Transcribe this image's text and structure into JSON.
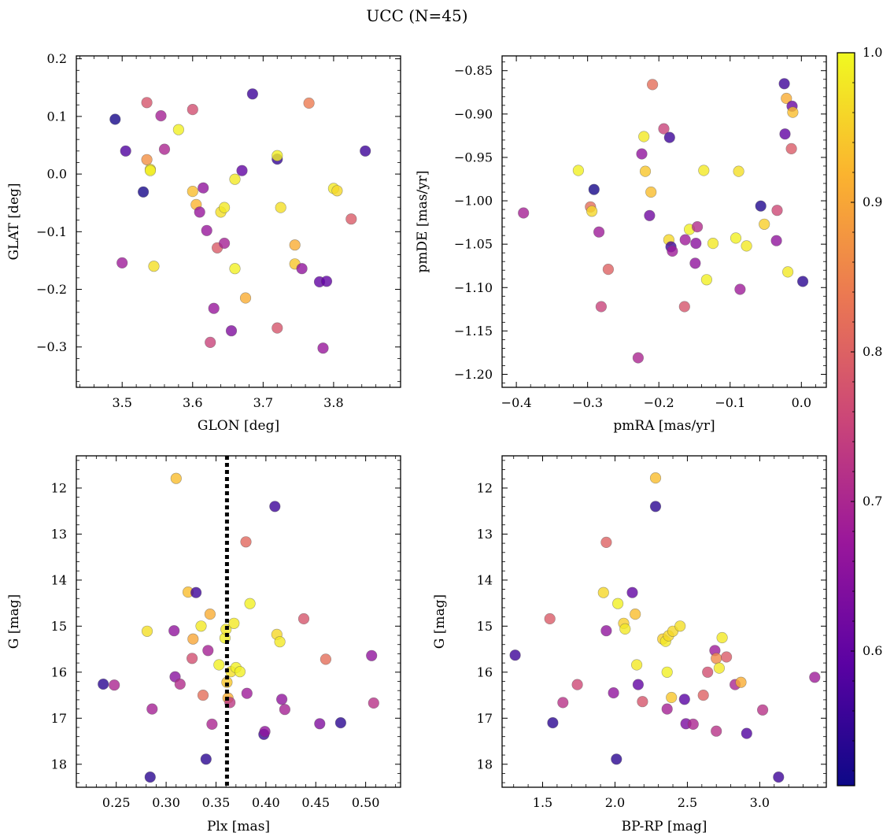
{
  "figure": {
    "title": "UCC (N=45)",
    "colormap": [
      "#0d0887",
      "#5b02a3",
      "#9a179b",
      "#cb4678",
      "#eb7852",
      "#fbb32f",
      "#f0f921"
    ],
    "marker_alpha": 0.8,
    "colorbar": {
      "range": [
        0.51,
        1.0
      ],
      "ticks": [
        "0.6",
        "0.7",
        "0.8",
        "0.9",
        "1.0"
      ],
      "tick_values": [
        0.6,
        0.7,
        0.8,
        0.9,
        1.0
      ]
    }
  },
  "chart_data": [
    {
      "type": "scatter",
      "xlabel": "GLON [deg]",
      "ylabel": "GLAT [deg]",
      "xlim": [
        3.435,
        3.895
      ],
      "ylim": [
        -0.37,
        0.205
      ],
      "yinvert": false,
      "xticks": [
        3.5,
        3.6,
        3.7,
        3.8
      ],
      "xticklabels": [
        "3.5",
        "3.6",
        "3.7",
        "3.8"
      ],
      "yticks": [
        0.2,
        0.1,
        0.0,
        -0.1,
        -0.2,
        -0.3
      ],
      "yticklabels": [
        "0.2",
        "0.1",
        "0.0",
        "−0.1",
        "−0.2",
        "−0.3"
      ],
      "x": [
        3.49,
        3.5,
        3.505,
        3.53,
        3.535,
        3.535,
        3.54,
        3.54,
        3.545,
        3.555,
        3.56,
        3.58,
        3.6,
        3.6,
        3.605,
        3.61,
        3.615,
        3.62,
        3.625,
        3.63,
        3.635,
        3.64,
        3.645,
        3.645,
        3.655,
        3.66,
        3.66,
        3.67,
        3.675,
        3.685,
        3.72,
        3.72,
        3.72,
        3.725,
        3.745,
        3.745,
        3.755,
        3.765,
        3.78,
        3.785,
        3.79,
        3.8,
        3.805,
        3.825,
        3.845
      ],
      "y": [
        0.095,
        -0.154,
        0.04,
        -0.031,
        0.124,
        0.025,
        0.008,
        0.006,
        -0.16,
        0.101,
        0.043,
        0.077,
        0.112,
        -0.03,
        -0.053,
        -0.066,
        -0.024,
        -0.098,
        -0.292,
        -0.233,
        -0.128,
        -0.066,
        -0.12,
        -0.058,
        -0.272,
        -0.009,
        -0.164,
        0.006,
        -0.215,
        0.139,
        0.026,
        -0.267,
        0.032,
        -0.058,
        -0.156,
        -0.123,
        -0.164,
        0.123,
        -0.187,
        -0.302,
        -0.186,
        -0.025,
        -0.029,
        -0.078,
        0.04
      ],
      "c": [
        0.52,
        0.68,
        0.58,
        0.52,
        0.78,
        0.87,
        0.97,
        0.99,
        0.97,
        0.69,
        0.7,
        0.99,
        0.77,
        0.93,
        0.92,
        0.67,
        0.66,
        0.67,
        0.75,
        0.67,
        0.79,
        0.97,
        0.69,
        0.98,
        0.64,
        0.98,
        0.99,
        0.6,
        0.91,
        0.56,
        0.55,
        0.78,
        0.99,
        0.97,
        0.94,
        0.91,
        0.66,
        0.84,
        0.6,
        0.67,
        0.6,
        0.98,
        0.96,
        0.79,
        0.56
      ]
    },
    {
      "type": "scatter",
      "xlabel": "pmRA [mas/yr]",
      "ylabel": "pmDE [mas/yr]",
      "xlim": [
        -0.42,
        0.035
      ],
      "ylim": [
        -1.215,
        -0.833
      ],
      "yinvert": false,
      "xticks": [
        -0.4,
        -0.3,
        -0.2,
        -0.1,
        0.0
      ],
      "xticklabels": [
        "−0.4",
        "−0.3",
        "−0.2",
        "−0.1",
        "0.0"
      ],
      "yticks": [
        -0.85,
        -0.9,
        -0.95,
        -1.0,
        -1.05,
        -1.1,
        -1.15,
        -1.2
      ],
      "yticklabels": [
        "−0.85",
        "−0.90",
        "−0.95",
        "−1.00",
        "−1.05",
        "−1.10",
        "−1.15",
        "−1.20"
      ],
      "x": [
        -0.39,
        -0.313,
        -0.296,
        -0.294,
        -0.291,
        -0.284,
        -0.281,
        -0.271,
        -0.229,
        -0.224,
        -0.221,
        -0.219,
        -0.213,
        -0.211,
        -0.209,
        -0.193,
        -0.186,
        -0.185,
        -0.183,
        -0.181,
        -0.164,
        -0.163,
        -0.157,
        -0.149,
        -0.148,
        -0.146,
        -0.137,
        -0.133,
        -0.124,
        -0.092,
        -0.088,
        -0.086,
        -0.077,
        -0.057,
        -0.052,
        -0.035,
        -0.034,
        -0.024,
        -0.023,
        -0.021,
        -0.019,
        -0.014,
        -0.013,
        -0.012,
        0.002
      ],
      "y": [
        -1.014,
        -0.965,
        -1.007,
        -1.012,
        -0.987,
        -1.036,
        -1.122,
        -1.079,
        -1.181,
        -0.946,
        -0.926,
        -0.966,
        -1.017,
        -0.99,
        -0.866,
        -0.917,
        -1.045,
        -0.927,
        -1.053,
        -1.058,
        -1.122,
        -1.045,
        -1.033,
        -1.072,
        -1.049,
        -1.03,
        -0.965,
        -1.091,
        -1.049,
        -1.043,
        -0.966,
        -1.102,
        -1.052,
        -1.006,
        -1.027,
        -1.046,
        -1.011,
        -0.865,
        -0.923,
        -0.882,
        -1.082,
        -0.94,
        -0.891,
        -0.898,
        -1.093
      ],
      "c": [
        0.69,
        0.99,
        0.82,
        0.96,
        0.52,
        0.68,
        0.75,
        0.8,
        0.7,
        0.66,
        0.98,
        0.94,
        0.62,
        0.93,
        0.82,
        0.75,
        0.96,
        0.56,
        0.56,
        0.68,
        0.78,
        0.68,
        0.99,
        0.66,
        0.65,
        0.71,
        0.98,
        0.99,
        0.98,
        0.99,
        0.97,
        0.68,
        0.98,
        0.53,
        0.95,
        0.66,
        0.76,
        0.56,
        0.6,
        0.91,
        0.98,
        0.79,
        0.61,
        0.93,
        0.54
      ]
    },
    {
      "type": "scatter",
      "xlabel": "Plx [mas]",
      "ylabel": "G [mag]",
      "xlim": [
        0.21,
        0.535
      ],
      "ylim": [
        11.3,
        18.5
      ],
      "yinvert": true,
      "xticks": [
        0.25,
        0.3,
        0.35,
        0.4,
        0.45,
        0.5
      ],
      "xticklabels": [
        "0.25",
        "0.30",
        "0.35",
        "0.40",
        "0.45",
        "0.50"
      ],
      "yticks": [
        12,
        13,
        14,
        15,
        16,
        17,
        18
      ],
      "yticklabels": [
        "12",
        "13",
        "14",
        "15",
        "16",
        "17",
        "18"
      ],
      "vline": 0.361,
      "x": [
        0.237,
        0.248,
        0.281,
        0.284,
        0.286,
        0.308,
        0.309,
        0.31,
        0.314,
        0.322,
        0.326,
        0.327,
        0.33,
        0.335,
        0.337,
        0.34,
        0.342,
        0.344,
        0.346,
        0.353,
        0.359,
        0.36,
        0.361,
        0.362,
        0.364,
        0.365,
        0.368,
        0.37,
        0.374,
        0.38,
        0.381,
        0.384,
        0.398,
        0.399,
        0.409,
        0.411,
        0.414,
        0.416,
        0.419,
        0.438,
        0.454,
        0.46,
        0.475,
        0.506,
        0.508
      ],
      "y": [
        16.26,
        16.28,
        15.11,
        18.28,
        16.8,
        15.1,
        16.1,
        11.79,
        16.26,
        14.26,
        15.7,
        15.28,
        14.27,
        15.0,
        16.5,
        17.89,
        15.53,
        14.74,
        17.13,
        15.84,
        15.26,
        15.07,
        16.22,
        16.56,
        16.66,
        15.99,
        14.94,
        15.9,
        15.99,
        13.17,
        16.46,
        14.51,
        17.35,
        17.29,
        12.4,
        15.18,
        15.34,
        16.59,
        16.81,
        14.84,
        17.12,
        15.72,
        17.1,
        15.64,
        16.67
      ],
      "c": [
        0.54,
        0.7,
        0.97,
        0.54,
        0.69,
        0.66,
        0.65,
        0.93,
        0.71,
        0.93,
        0.77,
        0.9,
        0.56,
        0.98,
        0.82,
        0.54,
        0.69,
        0.91,
        0.7,
        0.99,
        0.99,
        0.98,
        0.94,
        0.91,
        0.73,
        0.97,
        0.98,
        0.99,
        0.99,
        0.81,
        0.68,
        0.99,
        0.56,
        0.66,
        0.56,
        0.96,
        0.98,
        0.66,
        0.69,
        0.78,
        0.64,
        0.82,
        0.54,
        0.66,
        0.72
      ]
    },
    {
      "type": "scatter",
      "xlabel": "BP-RP [mag]",
      "ylabel": "G [mag]",
      "xlim": [
        1.22,
        3.46
      ],
      "ylim": [
        11.3,
        18.5
      ],
      "yinvert": true,
      "xticks": [
        1.5,
        2.0,
        2.5,
        3.0
      ],
      "xticklabels": [
        "1.5",
        "2.0",
        "2.5",
        "3.0"
      ],
      "yticks": [
        12,
        13,
        14,
        15,
        16,
        17,
        18
      ],
      "yticklabels": [
        "12",
        "13",
        "14",
        "15",
        "16",
        "17",
        "18"
      ],
      "x": [
        1.31,
        1.55,
        1.57,
        1.64,
        1.74,
        1.92,
        1.94,
        1.94,
        1.99,
        2.01,
        2.02,
        2.06,
        2.07,
        2.12,
        2.14,
        2.15,
        2.16,
        2.19,
        2.28,
        2.28,
        2.33,
        2.35,
        2.36,
        2.36,
        2.37,
        2.39,
        2.4,
        2.45,
        2.48,
        2.49,
        2.54,
        2.61,
        2.64,
        2.69,
        2.7,
        2.7,
        2.72,
        2.74,
        2.77,
        2.83,
        2.87,
        2.91,
        3.02,
        3.13,
        3.38
      ],
      "y": [
        15.63,
        14.84,
        17.1,
        16.66,
        16.27,
        14.27,
        15.1,
        13.18,
        16.45,
        17.89,
        14.51,
        14.94,
        15.06,
        14.27,
        14.74,
        15.84,
        16.27,
        16.64,
        11.78,
        12.4,
        15.28,
        15.33,
        16.8,
        16.0,
        15.21,
        16.55,
        15.11,
        15.0,
        16.59,
        17.12,
        17.13,
        16.5,
        16.0,
        15.53,
        17.28,
        15.7,
        15.91,
        15.25,
        15.67,
        16.27,
        16.22,
        17.33,
        16.82,
        18.28,
        16.11
      ],
      "c": [
        0.56,
        0.79,
        0.54,
        0.72,
        0.76,
        0.96,
        0.66,
        0.8,
        0.66,
        0.54,
        0.99,
        0.95,
        0.98,
        0.6,
        0.93,
        0.98,
        0.6,
        0.78,
        0.93,
        0.54,
        0.95,
        0.98,
        0.69,
        0.99,
        0.96,
        0.94,
        0.96,
        0.97,
        0.59,
        0.63,
        0.7,
        0.8,
        0.77,
        0.68,
        0.72,
        0.86,
        0.98,
        0.98,
        0.79,
        0.7,
        0.91,
        0.58,
        0.72,
        0.56,
        0.68
      ]
    }
  ]
}
